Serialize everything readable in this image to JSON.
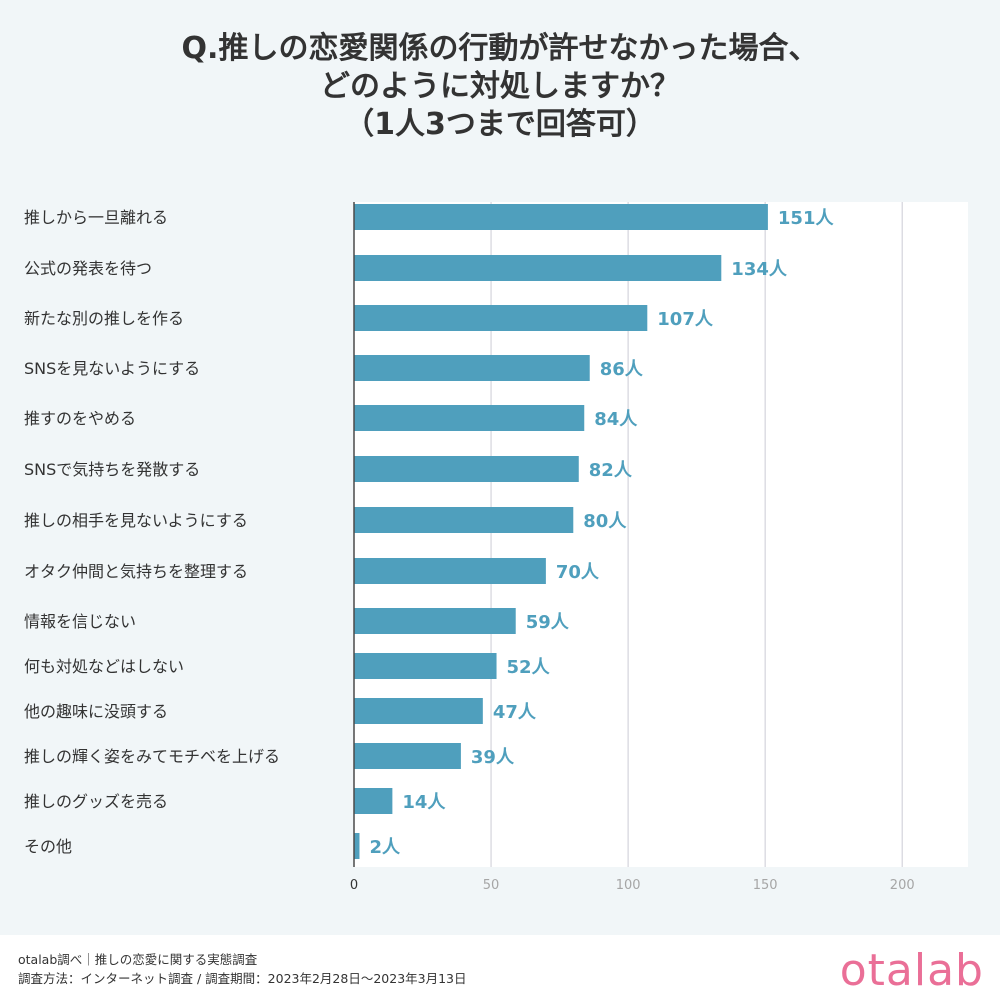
{
  "title": {
    "line1": "Q.推しの恋愛関係の行動が許せなかった場合、",
    "line2": "どのように対処しますか？",
    "line3": "（1人3つまで回答可）"
  },
  "chart_data": {
    "type": "bar",
    "orientation": "horizontal",
    "title": "Q.推しの恋愛関係の行動が許せなかった場合、どのように対処しますか？（1人3つまで回答可）",
    "categories": [
      "推しから一旦離れる",
      "公式の発表を待つ",
      "新たな別の推しを作る",
      "SNSを見ないようにする",
      "推すのをやめる",
      "SNSで気持ちを発散する",
      "推しの相手を見ないようにする",
      "オタク仲間と気持ちを整理する",
      "情報を信じない",
      "何も対処などはしない",
      "他の趣味に没頭する",
      "推しの輝く姿をみてモチベを上げる",
      "推しのグッズを売る",
      "その他"
    ],
    "values": [
      151,
      134,
      107,
      86,
      84,
      82,
      80,
      70,
      59,
      52,
      47,
      39,
      14,
      2
    ],
    "value_suffix": "人",
    "xlim": [
      0,
      224
    ],
    "xticks": [
      0,
      50,
      100,
      150,
      200
    ],
    "xtick_labels": [
      "0",
      "50",
      "100",
      "150",
      "200"
    ],
    "grid": true,
    "bar_color": "#4f9fbd",
    "label_color": "#4f9fbd"
  },
  "footer": {
    "line1": "otalab調べ｜推しの恋愛に関する実態調査",
    "line2": "調査方法：インターネット調査 / 調査期間：2023年2月28日〜2023年3月13日"
  },
  "brand": {
    "logo": "otalab",
    "logo_color": "#ea6f97"
  }
}
